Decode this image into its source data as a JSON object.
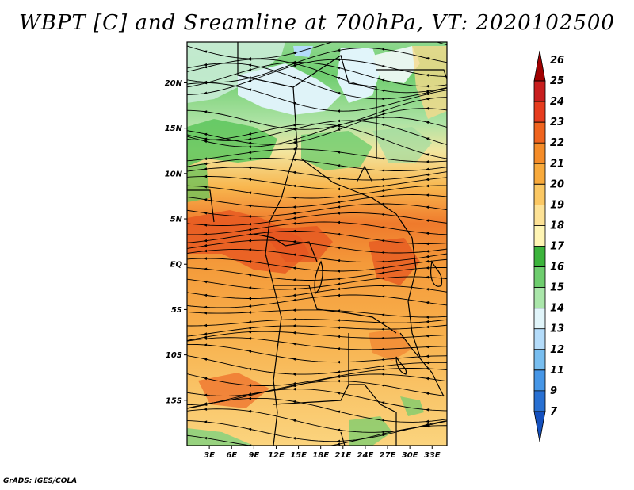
{
  "title": "WBPT [C] and Sreamline at 700hPa, VT: 2020102500",
  "footer": "GrADS: IGES/COLA",
  "map": {
    "lat_labels": [
      "20N",
      "15N",
      "10N",
      "5N",
      "EQ",
      "5S",
      "10S",
      "15S"
    ],
    "lat_values": [
      20,
      15,
      10,
      5,
      0,
      -5,
      -10,
      -15
    ],
    "lon_labels": [
      "3E",
      "6E",
      "9E",
      "12E",
      "15E",
      "18E",
      "21E",
      "24E",
      "27E",
      "30E",
      "33E"
    ],
    "lon_values": [
      3,
      6,
      9,
      12,
      15,
      18,
      21,
      24,
      27,
      30,
      33
    ],
    "lon_range": [
      0,
      35
    ],
    "lat_range": [
      -20,
      24.5
    ]
  },
  "colorbar": {
    "labels": [
      "26",
      "25",
      "24",
      "23",
      "22",
      "21",
      "20",
      "19",
      "18",
      "17",
      "16",
      "15",
      "14",
      "13",
      "12",
      "11",
      "9",
      "7"
    ],
    "colors": [
      "#a00000",
      "#c81e1e",
      "#e63c1e",
      "#f0641e",
      "#f58c28",
      "#f8aa3c",
      "#fbc864",
      "#fde296",
      "#fff5b4",
      "#3cb43c",
      "#6ecd6e",
      "#aae6aa",
      "#e1f5fa",
      "#b4dcfa",
      "#78bef0",
      "#4696e6",
      "#2870d2",
      "#1450be"
    ]
  }
}
